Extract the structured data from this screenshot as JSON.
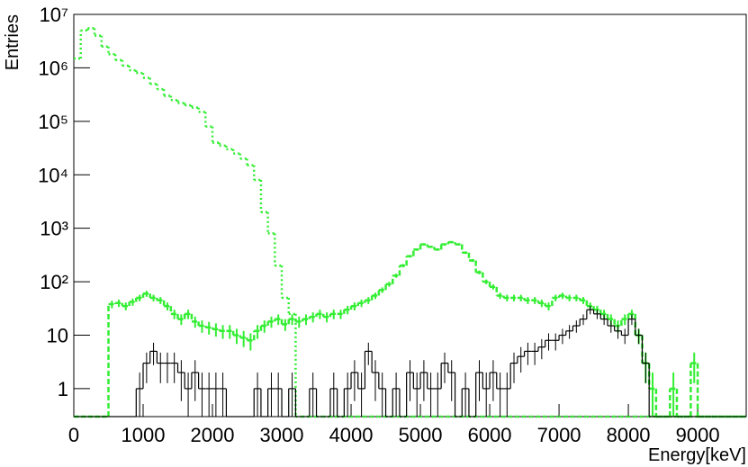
{
  "chart_data": {
    "type": "histogram",
    "xlabel": "Energy[keV]",
    "ylabel": "Entries",
    "log_y": true,
    "xlim": [
      0,
      9700
    ],
    "ylim": [
      0.3,
      10000000
    ],
    "xticks": [
      0,
      1000,
      2000,
      3000,
      4000,
      5000,
      6000,
      7000,
      8000,
      9000
    ],
    "yticks": [
      1,
      10,
      {
        "value": 100,
        "label": "10²"
      },
      {
        "value": 1000,
        "label": "10³"
      },
      {
        "value": 10000,
        "label": "10⁴"
      },
      {
        "value": 100000,
        "label": "10⁵"
      },
      {
        "value": 1000000,
        "label": "10⁶"
      },
      {
        "value": 10000000,
        "label": "10⁷"
      }
    ],
    "bins": [
      0,
      100,
      200,
      300,
      400,
      500,
      600,
      700,
      800,
      900,
      1000,
      1100,
      1200,
      1300,
      1400,
      1500,
      1600,
      1700,
      1800,
      1900,
      2000,
      2100,
      2200,
      2300,
      2400,
      2500,
      2600,
      2700,
      2800,
      2900,
      3000,
      3100,
      3200,
      3300,
      3400,
      3500,
      3600,
      3700,
      3800,
      3900,
      4000,
      4100,
      4200,
      4300,
      4400,
      4500,
      4600,
      4700,
      4800,
      4900,
      5000,
      5100,
      5200,
      5300,
      5400,
      5500,
      5600,
      5700,
      5800,
      5900,
      6000,
      6100,
      6200,
      6300,
      6400,
      6500,
      6600,
      6700,
      6800,
      6900,
      7000,
      7100,
      7200,
      7300,
      7400,
      7500,
      7600,
      7700,
      7800,
      7900,
      8000,
      8100,
      8200,
      8300,
      8400,
      8500,
      8600,
      8700,
      8800,
      8900,
      9000,
      9100,
      9200,
      9300,
      9400,
      9500,
      9600,
      9700
    ],
    "series": [
      {
        "color": "#33ee33",
        "line_style": "dotted",
        "error_bars": false,
        "values": [
          1500000,
          5000000,
          5500000,
          4000000,
          2500000,
          1800000,
          1400000,
          1100000,
          900000,
          800000,
          650000,
          500000,
          400000,
          300000,
          250000,
          220000,
          200000,
          180000,
          150000,
          80000,
          40000,
          35000,
          30000,
          25000,
          20000,
          15000,
          8000,
          2000,
          800,
          200,
          50,
          25,
          0,
          0,
          0,
          0,
          0,
          0,
          0,
          0,
          0,
          0,
          0,
          0,
          0,
          0,
          0,
          0,
          0,
          0,
          0,
          0,
          0,
          0,
          0,
          0,
          0,
          0,
          0,
          0,
          0,
          0,
          0,
          0,
          0,
          0,
          0,
          0,
          0,
          0,
          0,
          0,
          0,
          0,
          0,
          0,
          0,
          0,
          0,
          0,
          0,
          0,
          0,
          0,
          0,
          0,
          0,
          0,
          0,
          0,
          0,
          0,
          0,
          0,
          0,
          0,
          0
        ]
      },
      {
        "color": "#33ee33",
        "line_style": "dashed",
        "error_bars": true,
        "values": [
          0,
          0,
          0,
          0,
          0,
          38,
          40,
          35,
          42,
          50,
          60,
          50,
          45,
          35,
          25,
          20,
          25,
          18,
          15,
          14,
          13,
          12,
          12,
          10,
          9,
          8,
          12,
          15,
          18,
          20,
          16,
          20,
          18,
          20,
          22,
          25,
          22,
          25,
          25,
          30,
          35,
          40,
          45,
          55,
          70,
          90,
          130,
          200,
          300,
          400,
          500,
          450,
          400,
          500,
          550,
          500,
          350,
          250,
          150,
          100,
          80,
          55,
          50,
          50,
          50,
          45,
          45,
          40,
          35,
          50,
          55,
          50,
          50,
          45,
          35,
          30,
          25,
          20,
          15,
          20,
          25,
          10,
          3,
          1,
          0,
          0,
          1,
          0,
          0,
          3,
          0,
          0,
          0,
          0,
          0,
          0,
          0
        ]
      },
      {
        "color": "#000000",
        "line_style": "solid",
        "error_bars": true,
        "values": [
          0,
          0,
          0,
          0,
          0,
          0,
          0,
          0,
          0,
          1,
          3,
          5,
          3,
          3,
          3,
          2,
          1,
          2,
          1,
          1,
          1,
          1,
          0,
          0,
          0,
          0,
          1,
          0,
          1,
          1,
          0,
          1,
          0,
          0,
          1,
          0,
          0,
          1,
          0,
          1,
          2,
          1,
          5,
          2,
          1,
          0,
          1,
          0,
          2,
          1,
          2,
          1,
          1,
          3,
          2,
          0,
          1,
          0,
          2,
          1,
          2,
          1,
          1,
          3,
          4,
          5,
          5,
          6,
          8,
          8,
          10,
          12,
          15,
          20,
          30,
          25,
          20,
          15,
          12,
          10,
          20,
          10,
          3,
          0,
          0,
          0,
          0,
          0,
          0,
          0,
          0,
          0,
          0,
          0,
          0,
          0,
          0
        ]
      }
    ]
  }
}
